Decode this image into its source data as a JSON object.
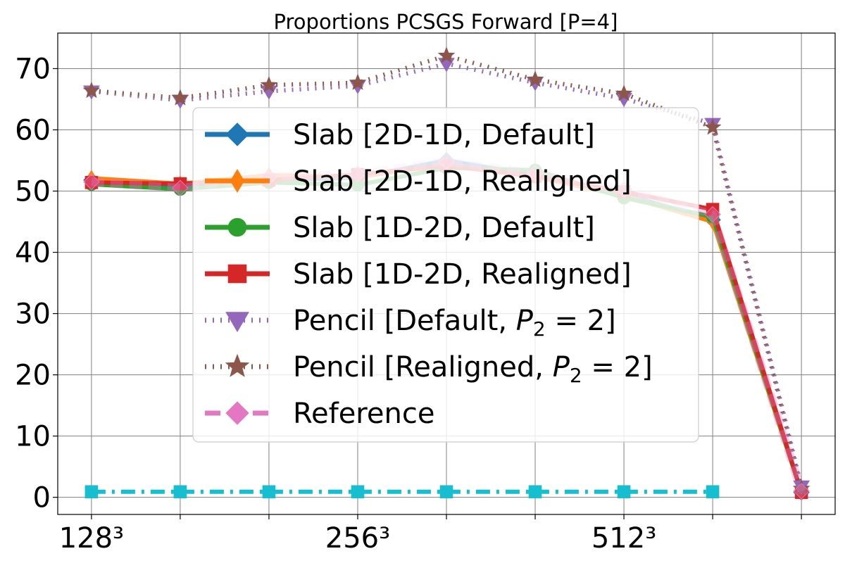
{
  "chart_data": {
    "type": "line",
    "title": "Proportions PCSGS Forward [P=4]",
    "x": [
      1,
      2,
      3,
      4,
      5,
      6,
      7,
      8,
      9
    ],
    "x_tick_positions": [
      1,
      2,
      3,
      4,
      5,
      6,
      7,
      8,
      9
    ],
    "x_tick_labels": [
      "128³",
      "",
      "",
      "256³",
      "",
      "",
      "512³",
      "",
      ""
    ],
    "xlim": [
      0.62,
      9.38
    ],
    "ylim": [
      -2.8,
      75.8
    ],
    "yticks": [
      0,
      10,
      20,
      30,
      40,
      50,
      60,
      70
    ],
    "grid": true,
    "legend_position": "center",
    "series": [
      {
        "name": "Slab [2D-1D, Default]",
        "color": "#1f77b4",
        "line": "solid",
        "marker": "diamond",
        "values": [
          51.8,
          50.6,
          51.8,
          52.2,
          55.0,
          52.6,
          49.5,
          45.3,
          0.8
        ]
      },
      {
        "name": "Slab [2D-1D, Realigned]",
        "color": "#ff7f0e",
        "line": "solid",
        "marker": "thin-diamond",
        "values": [
          52.1,
          51.2,
          52.6,
          52.3,
          54.3,
          52.3,
          49.2,
          45.0,
          0.8
        ]
      },
      {
        "name": "Slab [1D-2D, Default]",
        "color": "#2ca02c",
        "line": "solid",
        "marker": "circle",
        "values": [
          51.1,
          50.3,
          51.4,
          51.0,
          53.8,
          53.4,
          48.9,
          45.8,
          0.8
        ]
      },
      {
        "name": "Slab [1D-2D, Realigned]",
        "color": "#d62728",
        "line": "solid",
        "marker": "square",
        "values": [
          51.4,
          51.2,
          51.8,
          52.7,
          54.2,
          52.4,
          49.9,
          47.0,
          0.8
        ]
      },
      {
        "name": "Pencil [Default, P2 = 2]",
        "color": "#9467bd",
        "line": "dotted",
        "marker": "triangle-down",
        "values": [
          66.3,
          64.8,
          66.3,
          67.2,
          70.8,
          67.7,
          65.1,
          61.0,
          1.8
        ]
      },
      {
        "name": "Pencil [Realigned, P2 = 2]",
        "color": "#8c564b",
        "line": "dotted",
        "marker": "star",
        "values": [
          66.4,
          65.2,
          67.3,
          67.7,
          72.1,
          68.2,
          65.9,
          60.4,
          1.4
        ]
      },
      {
        "name": "Reference",
        "color": "#e377c2",
        "line": "dashed",
        "marker": "diamond",
        "values": [
          51.5,
          50.5,
          52.3,
          52.8,
          54.8,
          52.9,
          50.2,
          46.2,
          1.0
        ]
      },
      {
        "name": "",
        "color": "#17becf",
        "line": "dashdot",
        "marker": "square",
        "values": [
          0.9,
          0.9,
          0.9,
          0.9,
          0.9,
          0.9,
          0.9,
          0.9,
          null
        ]
      }
    ]
  }
}
